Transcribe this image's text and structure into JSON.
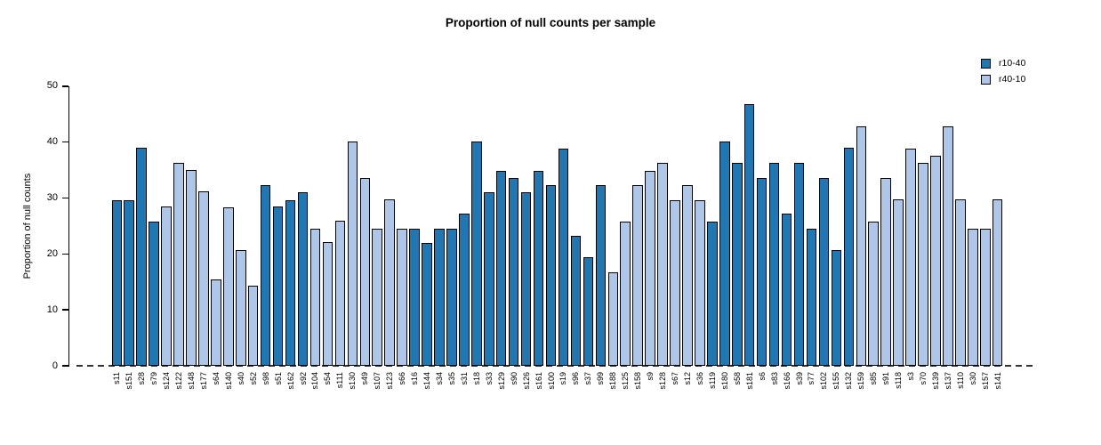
{
  "chart_data": {
    "type": "bar",
    "title": "Proportion of null counts per sample",
    "xlabel": "",
    "ylabel": "Proportion of null counts",
    "ylim": [
      0,
      50
    ],
    "yticks": [
      0,
      10,
      20,
      30,
      40,
      50
    ],
    "grid": false,
    "zero_line_style": "dashed",
    "legend_position": "top-right",
    "bar_edge_color": "#000000",
    "legend": [
      {
        "name": "r10-40",
        "color": "#1F77B4"
      },
      {
        "name": "r40-10",
        "color": "#AEC7E8"
      }
    ],
    "categories": [
      "s11",
      "s151",
      "s28",
      "s79",
      "s124",
      "s122",
      "s148",
      "s177",
      "s64",
      "s140",
      "s40",
      "s52",
      "s98",
      "s51",
      "s162",
      "s92",
      "s104",
      "s54",
      "s111",
      "s130",
      "s49",
      "s107",
      "s123",
      "s66",
      "s16",
      "s144",
      "s34",
      "s35",
      "s31",
      "s18",
      "s33",
      "s129",
      "s90",
      "s126",
      "s161",
      "s100",
      "s19",
      "s96",
      "s37",
      "s99",
      "s188",
      "s125",
      "s158",
      "s9",
      "s128",
      "s67",
      "s12",
      "s36",
      "s119",
      "s180",
      "s58",
      "s181",
      "s6",
      "s83",
      "s166",
      "s39",
      "s77",
      "s102",
      "s155",
      "s132",
      "s159",
      "s85",
      "s91",
      "s118",
      "s3",
      "s70",
      "s139",
      "s137",
      "s110",
      "s30",
      "s157",
      "s141"
    ],
    "values": [
      29.7,
      29.7,
      39.0,
      25.9,
      28.5,
      36.4,
      35.0,
      31.2,
      15.5,
      28.4,
      20.8,
      14.3,
      32.4,
      28.5,
      29.7,
      31.1,
      24.6,
      22.1,
      26.0,
      40.1,
      33.6,
      24.5,
      29.8,
      24.5,
      24.5,
      22.0,
      24.5,
      24.5,
      27.2,
      40.1,
      31.1,
      34.9,
      33.6,
      31.1,
      34.9,
      32.4,
      38.9,
      23.3,
      19.5,
      32.4,
      16.8,
      25.9,
      32.4,
      34.9,
      36.3,
      29.7,
      32.4,
      29.7,
      25.9,
      40.1,
      36.3,
      46.8,
      33.6,
      36.3,
      27.2,
      36.3,
      24.5,
      33.6,
      20.8,
      39.0,
      42.8,
      25.9,
      33.6,
      29.8,
      38.9,
      36.4,
      37.6,
      42.8,
      29.8,
      24.5,
      24.5,
      29.8
    ],
    "series_of_bar": [
      "r10-40",
      "r10-40",
      "r10-40",
      "r10-40",
      "r40-10",
      "r40-10",
      "r40-10",
      "r40-10",
      "r40-10",
      "r40-10",
      "r40-10",
      "r40-10",
      "r10-40",
      "r10-40",
      "r10-40",
      "r10-40",
      "r40-10",
      "r40-10",
      "r40-10",
      "r40-10",
      "r40-10",
      "r40-10",
      "r40-10",
      "r40-10",
      "r10-40",
      "r10-40",
      "r10-40",
      "r10-40",
      "r10-40",
      "r10-40",
      "r10-40",
      "r10-40",
      "r10-40",
      "r10-40",
      "r10-40",
      "r10-40",
      "r10-40",
      "r10-40",
      "r10-40",
      "r10-40",
      "r40-10",
      "r40-10",
      "r40-10",
      "r40-10",
      "r40-10",
      "r40-10",
      "r40-10",
      "r40-10",
      "r10-40",
      "r10-40",
      "r10-40",
      "r10-40",
      "r10-40",
      "r10-40",
      "r10-40",
      "r10-40",
      "r10-40",
      "r10-40",
      "r10-40",
      "r10-40",
      "r40-10",
      "r40-10",
      "r40-10",
      "r40-10",
      "r40-10",
      "r40-10",
      "r40-10",
      "r40-10",
      "r40-10",
      "r40-10",
      "r40-10",
      "r40-10"
    ]
  }
}
